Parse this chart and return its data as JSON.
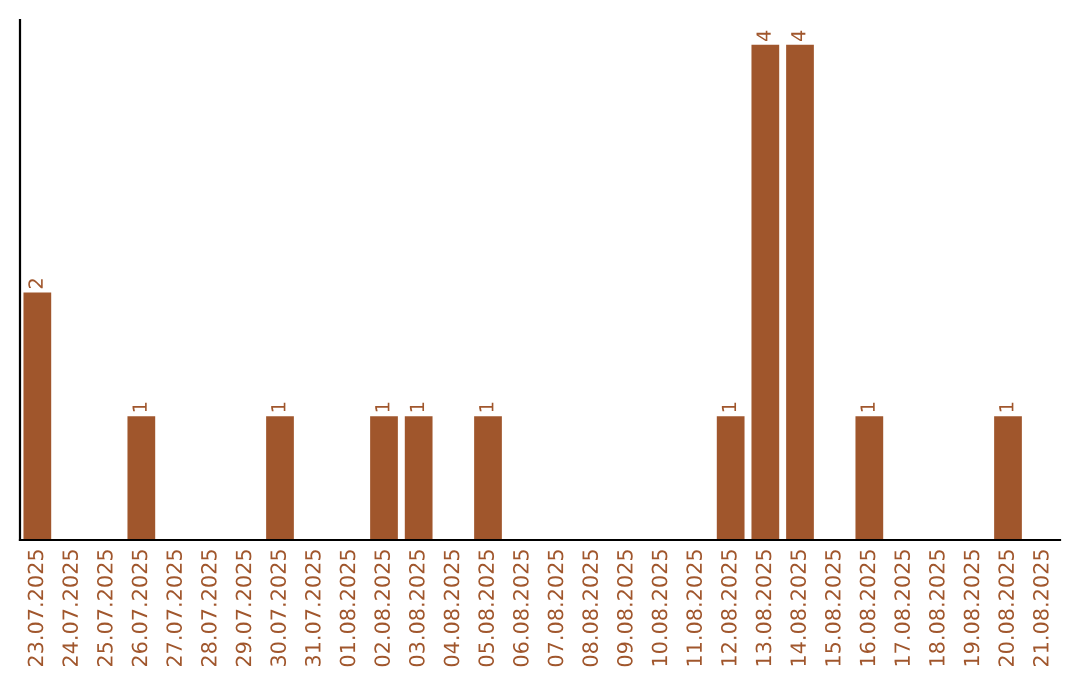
{
  "chart_data": {
    "type": "bar",
    "categories": [
      "23.07.2025",
      "24.07.2025",
      "25.07.2025",
      "26.07.2025",
      "27.07.2025",
      "28.07.2025",
      "29.07.2025",
      "30.07.2025",
      "31.07.2025",
      "01.08.2025",
      "02.08.2025",
      "03.08.2025",
      "04.08.2025",
      "05.08.2025",
      "06.08.2025",
      "07.08.2025",
      "08.08.2025",
      "09.08.2025",
      "10.08.2025",
      "11.08.2025",
      "12.08.2025",
      "13.08.2025",
      "14.08.2025",
      "15.08.2025",
      "16.08.2025",
      "17.08.2025",
      "18.08.2025",
      "19.08.2025",
      "20.08.2025",
      "21.08.2025"
    ],
    "values": [
      2,
      0,
      0,
      1,
      0,
      0,
      0,
      1,
      0,
      0,
      1,
      1,
      0,
      1,
      0,
      0,
      0,
      0,
      0,
      0,
      1,
      4,
      4,
      0,
      1,
      0,
      0,
      0,
      1,
      0
    ],
    "value_labels": [
      "2",
      null,
      null,
      "1",
      null,
      null,
      null,
      "1",
      null,
      null,
      "1",
      "1",
      null,
      "1",
      null,
      null,
      null,
      null,
      null,
      null,
      "1",
      "4",
      "4",
      null,
      "1",
      null,
      null,
      null,
      "1",
      null
    ],
    "color": "#a0562c",
    "tick_labels": "x",
    "grid": false,
    "legend": false
  }
}
